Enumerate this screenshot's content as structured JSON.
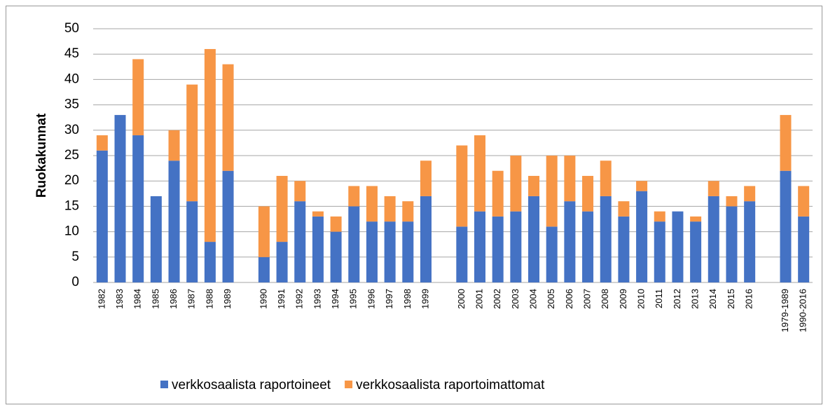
{
  "chart_data": {
    "type": "stacked_bar",
    "y_label": "Ruokakunnat",
    "categories": [
      "1982",
      "1983",
      "1984",
      "1985",
      "1986",
      "1987",
      "1988",
      "1989",
      null,
      "1990",
      "1991",
      "1992",
      "1993",
      "1994",
      "1995",
      "1996",
      "1997",
      "1998",
      "1999",
      null,
      "2000",
      "2001",
      "2002",
      "2003",
      "2004",
      "2005",
      "2006",
      "2007",
      "2008",
      "2009",
      "2010",
      "2011",
      "2012",
      "2013",
      "2014",
      "2015",
      "2016",
      null,
      "1979-1989",
      "1990-2016"
    ],
    "series": [
      {
        "name": "verkkosaalista raportoineet",
        "color": "#4472c4",
        "values": [
          26,
          33,
          29,
          17,
          24,
          16,
          8,
          22,
          null,
          5,
          8,
          16,
          13,
          10,
          15,
          12,
          12,
          12,
          17,
          null,
          11,
          14,
          13,
          14,
          17,
          11,
          16,
          14,
          17,
          13,
          18,
          12,
          14,
          12,
          17,
          15,
          16,
          null,
          22,
          13
        ]
      },
      {
        "name": "verkkosaalista raportoimattomat",
        "color": "#f79646",
        "values": [
          3,
          0,
          15,
          0,
          6,
          23,
          38,
          21,
          null,
          10,
          13,
          4,
          1,
          3,
          4,
          7,
          5,
          4,
          7,
          null,
          16,
          15,
          9,
          11,
          4,
          14,
          9,
          7,
          7,
          3,
          2,
          2,
          0,
          1,
          3,
          2,
          3,
          null,
          11,
          6
        ]
      }
    ],
    "ylim": [
      0,
      50
    ],
    "yticks": [
      0,
      5,
      10,
      15,
      20,
      25,
      30,
      35,
      40,
      45,
      50
    ],
    "grid": true,
    "legend": "bottom"
  }
}
